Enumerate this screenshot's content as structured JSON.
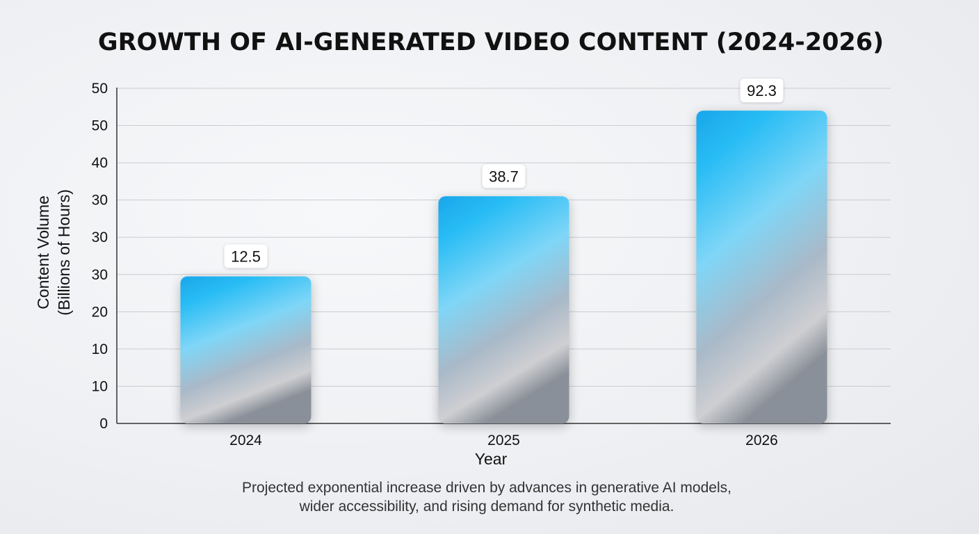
{
  "chart_data": {
    "type": "bar",
    "title": "GROWTH OF AI-GENERATED VIDEO CONTENT (2024-2026)",
    "xlabel": "Year",
    "ylabel_line1": "Content Volume",
    "ylabel_line2": "(Billions of Hours)",
    "categories": [
      "2024",
      "2025",
      "2026"
    ],
    "values": [
      12.5,
      38.7,
      92.3
    ],
    "data_labels": [
      "12.5",
      "38.7",
      "92.3"
    ],
    "y_tick_labels": [
      "0",
      "10",
      "10",
      "20",
      "30",
      "30",
      "30",
      "40",
      "50",
      "50"
    ],
    "bar_heights_in_ticks": [
      3.95,
      6.1,
      8.4
    ],
    "grid": true,
    "caption_line1": "Projected exponential increase driven by advances in generative AI models,",
    "caption_line2": "wider accessibility, and rising demand for synthetic media.",
    "colors": {
      "bar_top": "#1aa8ec",
      "bar_mid": "#7fd4f5",
      "bar_bottom": "#8e939a"
    }
  }
}
